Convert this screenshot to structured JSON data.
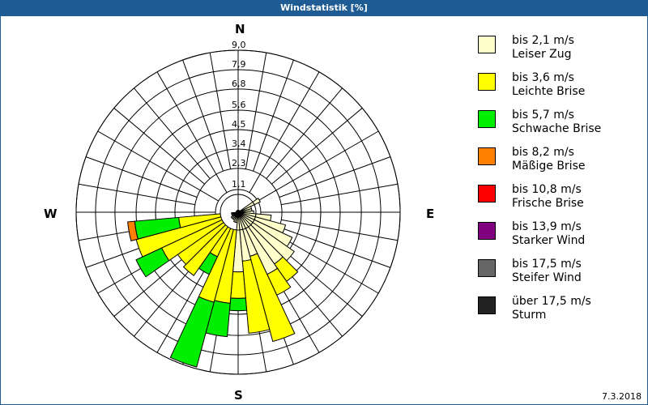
{
  "window": {
    "title": "Windstatistik [%]",
    "date": "7.3.2018"
  },
  "compass": {
    "N": "N",
    "E": "E",
    "S": "S",
    "W": "W"
  },
  "chart_data": {
    "type": "polar-bar",
    "title": "Windstatistik [%]",
    "unit": "%",
    "sector_width_deg": 10,
    "rings": [
      1.1,
      2.3,
      3.4,
      4.5,
      5.6,
      6.8,
      7.9,
      9.0
    ],
    "ring_labels": [
      "1,1",
      "2,3",
      "3,4",
      "4,5",
      "5,6",
      "6,8",
      "7,9",
      "9,0"
    ],
    "rmax": 9.0,
    "calm_radius": 0.8,
    "legend": [
      {
        "range": "bis 2,1 m/s",
        "name": "Leiser Zug",
        "color": "#ffffcc"
      },
      {
        "range": "bis 3,6 m/s",
        "name": "Leichte Brise",
        "color": "#ffff00"
      },
      {
        "range": "bis 5,7 m/s",
        "name": "Schwache Brise",
        "color": "#00ee00"
      },
      {
        "range": "bis 8,2 m/s",
        "name": "Mäßige Brise",
        "color": "#ff8000"
      },
      {
        "range": "bis 10,8 m/s",
        "name": "Frische Brise",
        "color": "#ff0000"
      },
      {
        "range": "bis 13,9 m/s",
        "name": "Starker Wind",
        "color": "#800080"
      },
      {
        "range": "bis 17,5 m/s",
        "name": "Steifer Wind",
        "color": "#666666"
      },
      {
        "range": "über 17,5 m/s",
        "name": "Sturm",
        "color": "#222222"
      }
    ],
    "sectors": [
      {
        "dir": 60,
        "cumulative": [
          1.2
        ]
      },
      {
        "dir": 70,
        "cumulative": [
          0.6
        ]
      },
      {
        "dir": 80,
        "cumulative": [
          0.6
        ]
      },
      {
        "dir": 90,
        "cumulative": [
          0.7
        ]
      },
      {
        "dir": 100,
        "cumulative": [
          1.7
        ]
      },
      {
        "dir": 110,
        "cumulative": [
          2.6
        ]
      },
      {
        "dir": 120,
        "cumulative": [
          3.2
        ]
      },
      {
        "dir": 130,
        "cumulative": [
          3.7
        ]
      },
      {
        "dir": 140,
        "cumulative": [
          3.4,
          4.6
        ]
      },
      {
        "dir": 150,
        "cumulative": [
          3.7,
          5.0
        ]
      },
      {
        "dir": 160,
        "cumulative": [
          2.4,
          7.4
        ]
      },
      {
        "dir": 170,
        "cumulative": [
          2.6,
          6.7
        ]
      },
      {
        "dir": 180,
        "cumulative": [
          3.2,
          4.7,
          5.4
        ]
      },
      {
        "dir": 190,
        "cumulative": [
          0.4,
          5.0,
          6.9
        ]
      },
      {
        "dir": 200,
        "cumulative": [
          0.4,
          5.1,
          8.9
        ]
      },
      {
        "dir": 210,
        "cumulative": [
          0.3,
          2.6,
          3.7
        ]
      },
      {
        "dir": 220,
        "cumulative": [
          0.3,
          4.2
        ]
      },
      {
        "dir": 230,
        "cumulative": [
          0.3,
          4.0
        ]
      },
      {
        "dir": 240,
        "cumulative": [
          0.2,
          4.6,
          6.2
        ]
      },
      {
        "dir": 250,
        "cumulative": [
          0.2,
          5.8,
          5.8
        ]
      },
      {
        "dir": 260,
        "cumulative": [
          0.2,
          3.2,
          5.7,
          6.1
        ]
      }
    ]
  }
}
